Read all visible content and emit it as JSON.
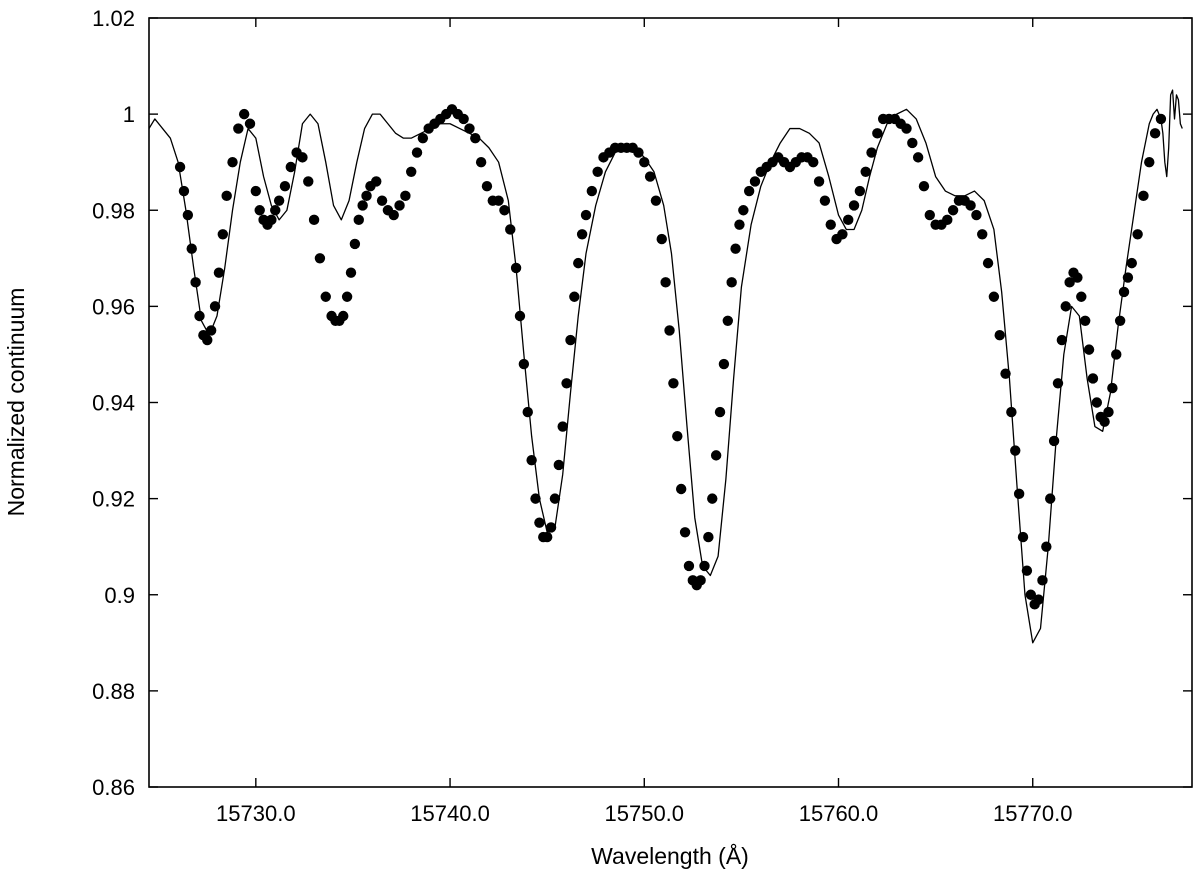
{
  "chart_data": {
    "type": "scatter",
    "title": "",
    "xlabel": "Wavelength (Å)",
    "ylabel": "Normalized continuum",
    "xlim": [
      15724.5,
      15778.2
    ],
    "ylim": [
      0.86,
      1.02
    ],
    "x_ticks": [
      15730.0,
      15740.0,
      15750.0,
      15760.0,
      15770.0
    ],
    "x_tick_labels": [
      "15730.0",
      "15740.0",
      "15750.0",
      "15760.0",
      "15770.0"
    ],
    "y_ticks": [
      0.86,
      0.88,
      0.9,
      0.92,
      0.94,
      0.96,
      0.98,
      1.0,
      1.02
    ],
    "y_tick_labels": [
      "0.86",
      "0.88",
      "0.9",
      "0.92",
      "0.94",
      "0.96",
      "0.98",
      "1",
      "1.02"
    ],
    "grid": false,
    "legend": "none",
    "series": [
      {
        "kind": "points",
        "color": "#000000",
        "x": [
          15726.1,
          15726.3,
          15726.5,
          15726.7,
          15726.9,
          15727.1,
          15727.3,
          15727.5,
          15727.7,
          15727.9,
          15728.1,
          15728.3,
          15728.5,
          15728.8,
          15729.1,
          15729.4,
          15729.7,
          15730.0,
          15730.2,
          15730.4,
          15730.6,
          15730.8,
          15731.0,
          15731.2,
          15731.5,
          15731.8,
          15732.1,
          15732.4,
          15732.7,
          15733.0,
          15733.3,
          15733.6,
          15733.9,
          15734.1,
          15734.3,
          15734.5,
          15734.7,
          15734.9,
          15735.1,
          15735.3,
          15735.5,
          15735.7,
          15735.9,
          15736.2,
          15736.5,
          15736.8,
          15737.1,
          15737.4,
          15737.7,
          15738.0,
          15738.3,
          15738.6,
          15738.9,
          15739.2,
          15739.5,
          15739.8,
          15740.1,
          15740.4,
          15740.7,
          15741.0,
          15741.3,
          15741.6,
          15741.9,
          15742.2,
          15742.5,
          15742.8,
          15743.1,
          15743.4,
          15743.6,
          15743.8,
          15744.0,
          15744.2,
          15744.4,
          15744.6,
          15744.8,
          15745.0,
          15745.2,
          15745.4,
          15745.6,
          15745.8,
          15746.0,
          15746.2,
          15746.4,
          15746.6,
          15746.8,
          15747.0,
          15747.3,
          15747.6,
          15747.9,
          15748.2,
          15748.5,
          15748.8,
          15749.1,
          15749.4,
          15749.7,
          15750.0,
          15750.3,
          15750.6,
          15750.9,
          15751.1,
          15751.3,
          15751.5,
          15751.7,
          15751.9,
          15752.1,
          15752.3,
          15752.5,
          15752.7,
          15752.9,
          15753.1,
          15753.3,
          15753.5,
          15753.7,
          15753.9,
          15754.1,
          15754.3,
          15754.5,
          15754.7,
          15754.9,
          15755.1,
          15755.4,
          15755.7,
          15756.0,
          15756.3,
          15756.6,
          15756.9,
          15757.2,
          15757.5,
          15757.8,
          15758.1,
          15758.4,
          15758.7,
          15759.0,
          15759.3,
          15759.6,
          15759.9,
          15760.2,
          15760.5,
          15760.8,
          15761.1,
          15761.4,
          15761.7,
          15762.0,
          15762.3,
          15762.6,
          15762.9,
          15763.2,
          15763.5,
          15763.8,
          15764.1,
          15764.4,
          15764.7,
          15765.0,
          15765.3,
          15765.6,
          15765.9,
          15766.2,
          15766.5,
          15766.8,
          15767.1,
          15767.4,
          15767.7,
          15768.0,
          15768.3,
          15768.6,
          15768.9,
          15769.1,
          15769.3,
          15769.5,
          15769.7,
          15769.9,
          15770.1,
          15770.3,
          15770.5,
          15770.7,
          15770.9,
          15771.1,
          15771.3,
          15771.5,
          15771.7,
          15771.9,
          15772.1,
          15772.3,
          15772.5,
          15772.7,
          15772.9,
          15773.1,
          15773.3,
          15773.5,
          15773.7,
          15773.9,
          15774.1,
          15774.3,
          15774.5,
          15774.7,
          15774.9,
          15775.1,
          15775.4,
          15775.7,
          15776.0,
          15776.3,
          15776.6
        ],
        "y": [
          0.989,
          0.984,
          0.979,
          0.972,
          0.965,
          0.958,
          0.954,
          0.953,
          0.955,
          0.96,
          0.967,
          0.975,
          0.983,
          0.99,
          0.997,
          1.0,
          0.998,
          0.984,
          0.98,
          0.978,
          0.977,
          0.978,
          0.98,
          0.982,
          0.985,
          0.989,
          0.992,
          0.991,
          0.986,
          0.978,
          0.97,
          0.962,
          0.958,
          0.957,
          0.957,
          0.958,
          0.962,
          0.967,
          0.973,
          0.978,
          0.981,
          0.983,
          0.985,
          0.986,
          0.982,
          0.98,
          0.979,
          0.981,
          0.983,
          0.988,
          0.992,
          0.995,
          0.997,
          0.998,
          0.999,
          1.0,
          1.001,
          1.0,
          0.999,
          0.997,
          0.995,
          0.99,
          0.985,
          0.982,
          0.982,
          0.98,
          0.976,
          0.968,
          0.958,
          0.948,
          0.938,
          0.928,
          0.92,
          0.915,
          0.912,
          0.912,
          0.914,
          0.92,
          0.927,
          0.935,
          0.944,
          0.953,
          0.962,
          0.969,
          0.975,
          0.979,
          0.984,
          0.988,
          0.991,
          0.992,
          0.993,
          0.993,
          0.993,
          0.993,
          0.992,
          0.99,
          0.987,
          0.982,
          0.974,
          0.965,
          0.955,
          0.944,
          0.933,
          0.922,
          0.913,
          0.906,
          0.903,
          0.902,
          0.903,
          0.906,
          0.912,
          0.92,
          0.929,
          0.938,
          0.948,
          0.957,
          0.965,
          0.972,
          0.977,
          0.98,
          0.984,
          0.986,
          0.988,
          0.989,
          0.99,
          0.991,
          0.99,
          0.989,
          0.99,
          0.991,
          0.991,
          0.99,
          0.986,
          0.982,
          0.977,
          0.974,
          0.975,
          0.978,
          0.981,
          0.984,
          0.988,
          0.992,
          0.996,
          0.999,
          0.999,
          0.999,
          0.998,
          0.997,
          0.994,
          0.991,
          0.985,
          0.979,
          0.977,
          0.977,
          0.978,
          0.98,
          0.982,
          0.982,
          0.981,
          0.979,
          0.975,
          0.969,
          0.962,
          0.954,
          0.946,
          0.938,
          0.93,
          0.921,
          0.912,
          0.905,
          0.9,
          0.898,
          0.899,
          0.903,
          0.91,
          0.92,
          0.932,
          0.944,
          0.953,
          0.96,
          0.965,
          0.967,
          0.966,
          0.962,
          0.957,
          0.951,
          0.945,
          0.94,
          0.937,
          0.936,
          0.938,
          0.943,
          0.95,
          0.957,
          0.963,
          0.966,
          0.969,
          0.975,
          0.983,
          0.99,
          0.996,
          0.999
        ]
      },
      {
        "kind": "line",
        "color": "#000000",
        "x": [
          15724.5,
          15724.8,
          15725.2,
          15725.6,
          15726.0,
          15726.4,
          15726.8,
          15727.2,
          15727.6,
          15728.0,
          15728.4,
          15728.8,
          15729.2,
          15729.6,
          15730.0,
          15730.4,
          15730.8,
          15731.2,
          15731.6,
          15732.0,
          15732.4,
          15732.8,
          15733.2,
          15733.6,
          15734.0,
          15734.4,
          15734.8,
          15735.2,
          15735.6,
          15736.0,
          15736.4,
          15736.8,
          15737.2,
          15737.6,
          15738.0,
          15738.5,
          15739.0,
          15739.5,
          15740.0,
          15740.5,
          15741.0,
          15741.5,
          15742.0,
          15742.5,
          15743.0,
          15743.4,
          15743.8,
          15744.2,
          15744.6,
          15745.0,
          15745.4,
          15745.8,
          15746.2,
          15746.6,
          15747.0,
          15747.5,
          15748.0,
          15748.5,
          15749.0,
          15749.5,
          15750.0,
          15750.5,
          15751.0,
          15751.4,
          15751.8,
          15752.2,
          15752.6,
          15753.0,
          15753.4,
          15753.8,
          15754.2,
          15754.6,
          15755.0,
          15755.5,
          15756.0,
          15756.5,
          15757.0,
          15757.5,
          15758.0,
          15758.5,
          15759.0,
          15759.5,
          15760.0,
          15760.4,
          15760.8,
          15761.2,
          15761.6,
          15762.0,
          15762.5,
          15763.0,
          15763.5,
          15764.0,
          15764.5,
          15765.0,
          15765.5,
          15766.0,
          15766.5,
          15767.0,
          15767.5,
          15768.0,
          15768.4,
          15768.8,
          15769.2,
          15769.6,
          15770.0,
          15770.4,
          15770.8,
          15771.2,
          15771.6,
          15772.0,
          15772.4,
          15772.8,
          15773.2,
          15773.6,
          15774.0,
          15774.4,
          15774.8,
          15775.2,
          15775.6,
          15776.0,
          15776.2,
          15776.4,
          15776.6,
          15776.7,
          15776.8,
          15776.9,
          15777.0,
          15777.1,
          15777.2,
          15777.3,
          15777.4,
          15777.5,
          15777.6,
          15777.7
        ],
        "y": [
          0.997,
          0.999,
          0.997,
          0.995,
          0.99,
          0.98,
          0.968,
          0.957,
          0.954,
          0.958,
          0.968,
          0.98,
          0.99,
          0.997,
          0.995,
          0.987,
          0.981,
          0.978,
          0.98,
          0.988,
          0.998,
          1.0,
          0.998,
          0.99,
          0.981,
          0.978,
          0.982,
          0.99,
          0.997,
          1.0,
          1.0,
          0.998,
          0.996,
          0.995,
          0.995,
          0.996,
          0.997,
          0.998,
          0.998,
          0.997,
          0.996,
          0.995,
          0.993,
          0.99,
          0.982,
          0.968,
          0.95,
          0.933,
          0.92,
          0.913,
          0.914,
          0.925,
          0.942,
          0.958,
          0.971,
          0.981,
          0.988,
          0.992,
          0.993,
          0.993,
          0.991,
          0.988,
          0.981,
          0.971,
          0.955,
          0.935,
          0.916,
          0.906,
          0.904,
          0.908,
          0.924,
          0.945,
          0.964,
          0.977,
          0.985,
          0.99,
          0.994,
          0.997,
          0.997,
          0.996,
          0.994,
          0.987,
          0.979,
          0.976,
          0.976,
          0.98,
          0.987,
          0.993,
          0.998,
          1.0,
          1.001,
          0.999,
          0.994,
          0.987,
          0.984,
          0.983,
          0.983,
          0.984,
          0.982,
          0.976,
          0.963,
          0.945,
          0.922,
          0.9,
          0.89,
          0.893,
          0.91,
          0.932,
          0.95,
          0.96,
          0.958,
          0.945,
          0.935,
          0.934,
          0.942,
          0.956,
          0.968,
          0.979,
          0.99,
          0.998,
          1.0,
          1.001,
          0.999,
          0.996,
          0.99,
          0.987,
          0.993,
          1.004,
          1.005,
          0.999,
          1.004,
          1.003,
          0.998,
          0.997
        ]
      }
    ]
  }
}
